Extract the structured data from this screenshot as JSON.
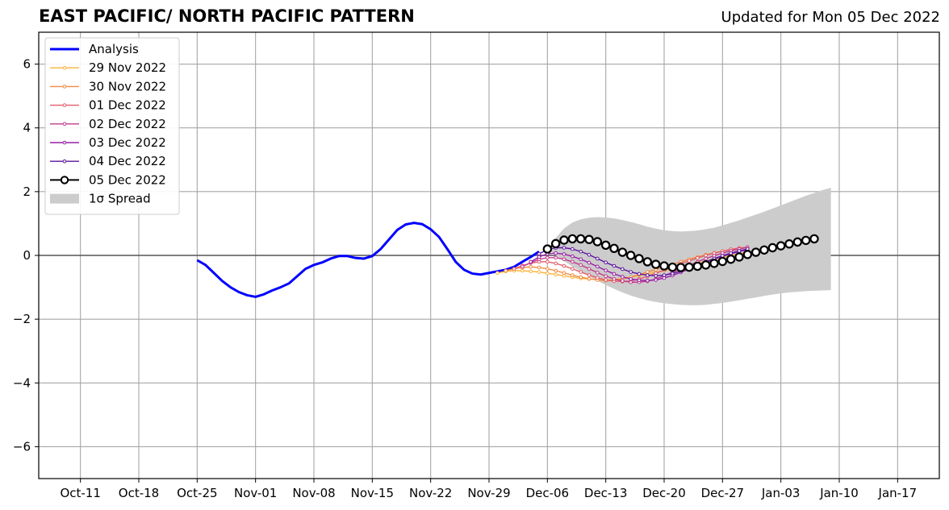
{
  "header": {
    "title": "EAST PACIFIC/ NORTH PACIFIC PATTERN",
    "updated": "Updated for Mon 05 Dec 2022"
  },
  "chart_data": {
    "type": "line",
    "title": "EAST PACIFIC/ NORTH PACIFIC PATTERN",
    "subtitle": "Updated for Mon 05 Dec 2022",
    "xlabel": "",
    "ylabel": "",
    "xlim": [
      "2022-10-06",
      "2023-01-22"
    ],
    "ylim": [
      -7,
      7
    ],
    "grid": true,
    "legend_position": "top-left",
    "x_ticks": [
      "2022-10-11",
      "2022-10-18",
      "2022-10-25",
      "2022-11-01",
      "2022-11-08",
      "2022-11-15",
      "2022-11-22",
      "2022-11-29",
      "2022-12-06",
      "2022-12-13",
      "2022-12-20",
      "2022-12-27",
      "2023-01-03",
      "2023-01-10",
      "2023-01-17"
    ],
    "x_tick_labels": [
      "Oct-11",
      "Oct-18",
      "Oct-25",
      "Nov-01",
      "Nov-08",
      "Nov-15",
      "Nov-22",
      "Nov-29",
      "Dec-06",
      "Dec-13",
      "Dec-20",
      "Dec-27",
      "Jan-03",
      "Jan-10",
      "Jan-17"
    ],
    "y_ticks": [
      -6,
      -4,
      -2,
      0,
      2,
      4,
      6
    ],
    "y_tick_labels": [
      "−6",
      "−4",
      "−2",
      "0",
      "2",
      "4",
      "6"
    ],
    "zero_line": true,
    "analysis": {
      "name": "Analysis",
      "color": "#0000ff",
      "start": "2022-10-25",
      "values": [
        -0.15,
        -0.3,
        -0.55,
        -0.8,
        -1.0,
        -1.15,
        -1.25,
        -1.3,
        -1.22,
        -1.1,
        -1.0,
        -0.88,
        -0.65,
        -0.42,
        -0.3,
        -0.22,
        -0.1,
        -0.02,
        -0.02,
        -0.08,
        -0.1,
        -0.02,
        0.2,
        0.5,
        0.8,
        0.97,
        1.02,
        0.98,
        0.82,
        0.58,
        0.2,
        -0.2,
        -0.45,
        -0.57,
        -0.6,
        -0.55,
        -0.5,
        -0.45,
        -0.36,
        -0.2,
        -0.05,
        0.12
      ]
    },
    "series": [
      {
        "name": "29 Nov 2022",
        "color": "#fbb23a",
        "start": "2022-11-30",
        "values": [
          -0.55,
          -0.5,
          -0.48,
          -0.48,
          -0.5,
          -0.52,
          -0.56,
          -0.6,
          -0.64,
          -0.68,
          -0.72,
          -0.74,
          -0.76,
          -0.78,
          -0.76,
          -0.72,
          -0.68,
          -0.63,
          -0.58,
          -0.53,
          -0.48,
          -0.43,
          -0.38,
          -0.32,
          -0.25,
          -0.18,
          -0.12,
          -0.06,
          0.0,
          0.05,
          0.1,
          0.15,
          0.19
        ]
      },
      {
        "name": "30 Nov 2022",
        "color": "#f28b43",
        "start": "2022-12-01",
        "values": [
          -0.48,
          -0.42,
          -0.38,
          -0.36,
          -0.38,
          -0.42,
          -0.48,
          -0.55,
          -0.62,
          -0.68,
          -0.73,
          -0.77,
          -0.79,
          -0.78,
          -0.74,
          -0.68,
          -0.6,
          -0.52,
          -0.44,
          -0.36,
          -0.28,
          -0.2,
          -0.12,
          -0.05,
          0.02,
          0.08,
          0.13,
          0.18,
          0.22,
          0.25
        ]
      },
      {
        "name": "01 Dec 2022",
        "color": "#e35c69",
        "start": "2022-12-02",
        "values": [
          -0.42,
          -0.32,
          -0.24,
          -0.2,
          -0.2,
          -0.25,
          -0.33,
          -0.42,
          -0.52,
          -0.62,
          -0.7,
          -0.77,
          -0.81,
          -0.82,
          -0.8,
          -0.74,
          -0.66,
          -0.56,
          -0.46,
          -0.36,
          -0.26,
          -0.17,
          -0.08,
          0.0,
          0.07,
          0.13,
          0.19,
          0.23,
          0.26
        ]
      },
      {
        "name": "02 Dec 2022",
        "color": "#c13a8a",
        "start": "2022-12-03",
        "values": [
          -0.35,
          -0.23,
          -0.12,
          -0.07,
          -0.07,
          -0.12,
          -0.2,
          -0.3,
          -0.42,
          -0.54,
          -0.65,
          -0.74,
          -0.8,
          -0.84,
          -0.84,
          -0.81,
          -0.74,
          -0.64,
          -0.53,
          -0.42,
          -0.31,
          -0.2,
          -0.1,
          -0.01,
          0.07,
          0.14,
          0.2,
          0.25
        ]
      },
      {
        "name": "03 Dec 2022",
        "color": "#991ea7",
        "start": "2022-12-04",
        "values": [
          -0.2,
          -0.05,
          0.05,
          0.07,
          0.04,
          -0.03,
          -0.12,
          -0.23,
          -0.35,
          -0.47,
          -0.58,
          -0.67,
          -0.74,
          -0.78,
          -0.79,
          -0.77,
          -0.71,
          -0.63,
          -0.53,
          -0.43,
          -0.32,
          -0.22,
          -0.12,
          -0.03,
          0.05,
          0.12,
          0.18
        ]
      },
      {
        "name": "04 Dec 2022",
        "color": "#5c13a0",
        "start": "2022-12-05",
        "values": [
          0.05,
          0.18,
          0.24,
          0.24,
          0.2,
          0.12,
          0.02,
          -0.1,
          -0.22,
          -0.33,
          -0.43,
          -0.52,
          -0.58,
          -0.62,
          -0.64,
          -0.62,
          -0.57,
          -0.49,
          -0.4,
          -0.3,
          -0.2,
          -0.1,
          -0.01,
          0.07,
          0.14,
          0.2
        ]
      },
      {
        "name": "05 Dec 2022",
        "color": "#000000",
        "markers": "open-circle",
        "start": "2022-12-06",
        "values": [
          0.2,
          0.37,
          0.48,
          0.52,
          0.52,
          0.5,
          0.43,
          0.32,
          0.22,
          0.1,
          0.0,
          -0.1,
          -0.2,
          -0.28,
          -0.33,
          -0.37,
          -0.38,
          -0.37,
          -0.34,
          -0.3,
          -0.25,
          -0.19,
          -0.12,
          -0.05,
          0.03,
          0.1,
          0.17,
          0.24,
          0.3,
          0.36,
          0.42,
          0.47,
          0.52
        ]
      }
    ],
    "spread": {
      "name": "1σ Spread",
      "color": "#cccccc",
      "start": "2022-12-06",
      "upper": [
        0.2,
        0.55,
        0.85,
        1.03,
        1.13,
        1.18,
        1.2,
        1.19,
        1.16,
        1.11,
        1.05,
        0.98,
        0.9,
        0.84,
        0.79,
        0.76,
        0.75,
        0.76,
        0.78,
        0.82,
        0.87,
        0.94,
        1.02,
        1.1,
        1.19,
        1.28,
        1.37,
        1.47,
        1.57,
        1.67,
        1.77,
        1.87,
        1.96,
        2.05,
        2.12
      ],
      "lower": [
        0.2,
        0.0,
        -0.18,
        -0.35,
        -0.5,
        -0.65,
        -0.8,
        -0.93,
        -1.05,
        -1.16,
        -1.26,
        -1.34,
        -1.41,
        -1.46,
        -1.5,
        -1.53,
        -1.55,
        -1.56,
        -1.56,
        -1.55,
        -1.52,
        -1.49,
        -1.45,
        -1.41,
        -1.36,
        -1.32,
        -1.27,
        -1.23,
        -1.19,
        -1.16,
        -1.14,
        -1.12,
        -1.11,
        -1.1,
        -1.09
      ]
    }
  }
}
